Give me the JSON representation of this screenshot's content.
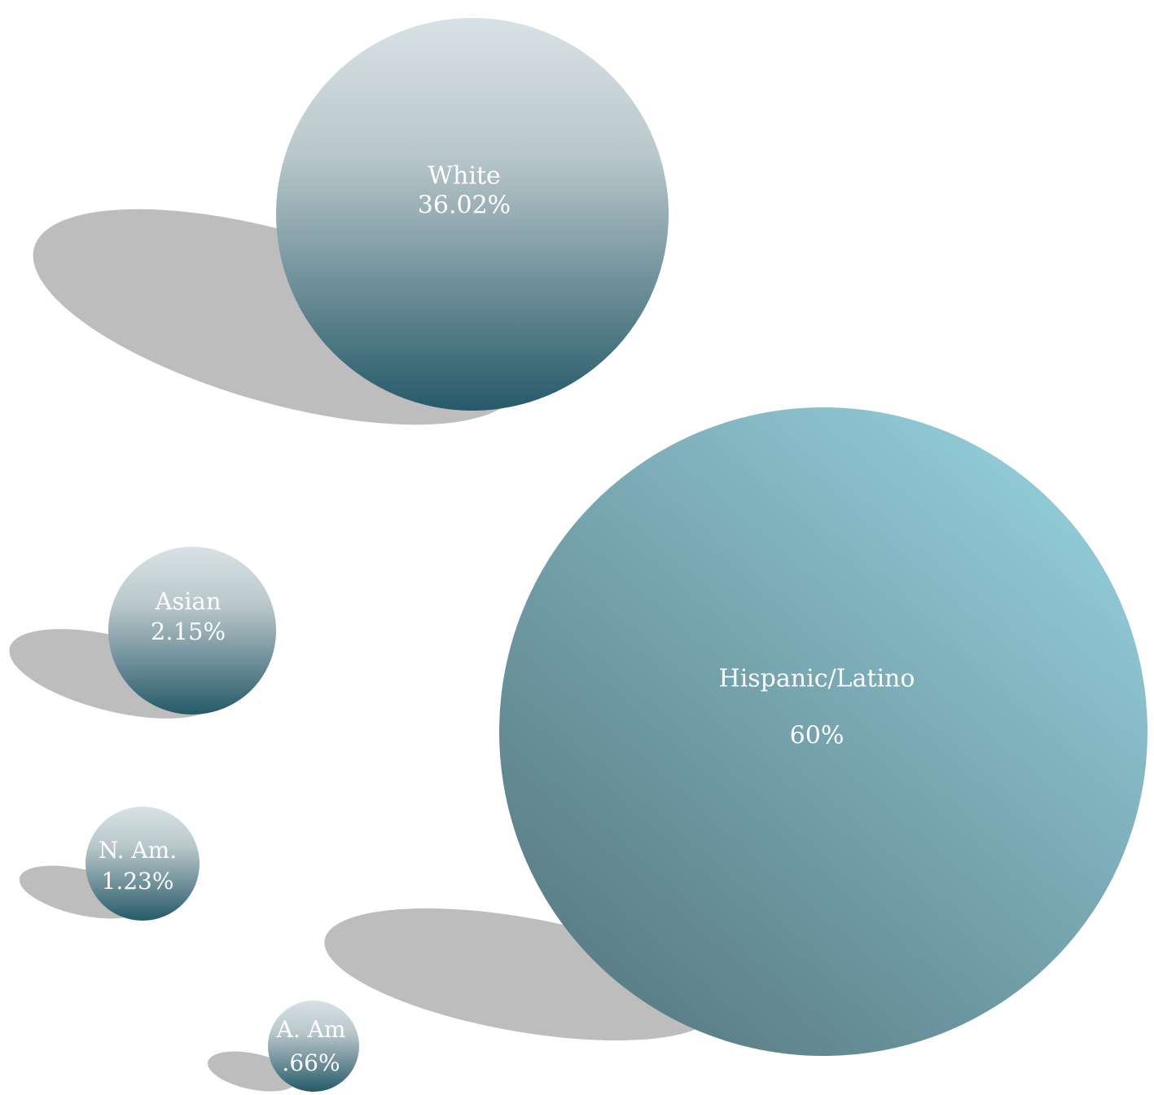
{
  "chart_data": {
    "type": "bubble",
    "title": "",
    "series": [
      {
        "name": "White",
        "label": "White",
        "value_label": "36.02%",
        "value": 36.02,
        "style": "vertical",
        "colors": {
          "top": "#d8e2e4",
          "bottom": "#265a69"
        }
      },
      {
        "name": "Hispanic/Latino",
        "label": "Hispanic/Latino",
        "value_label": "60%",
        "value": 60,
        "style": "diagonal",
        "colors": {
          "light": "#92cbd8",
          "dark": "#5a7d85"
        }
      },
      {
        "name": "Asian",
        "label": "Asian",
        "value_label": "2.15%",
        "value": 2.15,
        "style": "vertical",
        "colors": {
          "top": "#d8e2e4",
          "bottom": "#265a69"
        }
      },
      {
        "name": "N. Am.",
        "label": "N. Am.",
        "value_label": "1.23%",
        "value": 1.23,
        "style": "vertical",
        "colors": {
          "top": "#d8e2e4",
          "bottom": "#265a69"
        }
      },
      {
        "name": "A. Am",
        "label": "A. Am",
        "value_label": ".66%",
        "value": 0.66,
        "style": "vertical",
        "colors": {
          "top": "#d8e2e4",
          "bottom": "#265a69"
        }
      }
    ],
    "shadow_color": "#bdbdbd",
    "legend": "none",
    "grid": false
  }
}
